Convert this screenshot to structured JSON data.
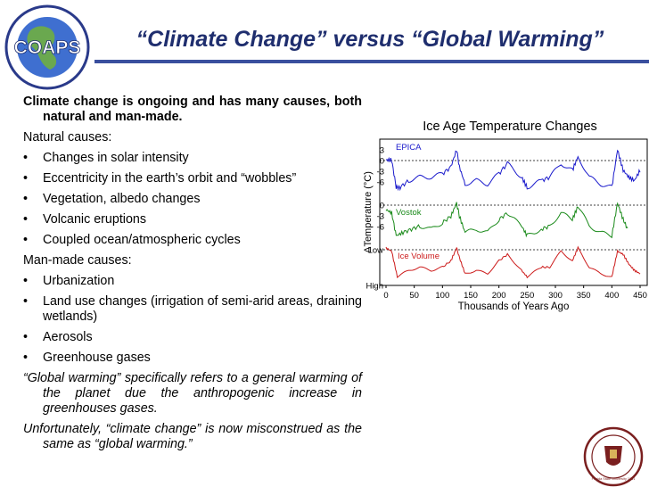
{
  "header": {
    "title": "“Climate Change” versus “Global Warming”",
    "logo_text": "COAPS",
    "logo_ring_text": "Florida State University · Center for Ocean-Atmospheric Prediction Studies"
  },
  "body": {
    "intro": "Climate change is ongoing and has many causes, both natural and man-made.",
    "natural_header": "Natural causes:",
    "natural_items": [
      "Changes in solar intensity",
      "Eccentricity in the earth’s orbit and “wobbles”",
      "Vegetation, albedo changes",
      "Volcanic eruptions",
      "Coupled ocean/atmospheric cycles"
    ],
    "manmade_header": "Man-made causes:",
    "manmade_items": [
      "Urbanization",
      "Land use changes (irrigation of semi-arid areas, draining wetlands)",
      "Aerosols",
      "Greenhouse gases"
    ],
    "gw_note": "“Global warming” specifically refers to a general warming of the planet due the anthropogenic increase in greenhouses gases.",
    "misconception": "Unfortunately, “climate change” is now misconstrued as the same as “global warming.”"
  },
  "bullet_glyph": "•",
  "seal_text": "Florida State University 1851",
  "chart_data": {
    "type": "line",
    "title": "Ice Age Temperature Changes",
    "xlabel": "Thousands of Years Ago",
    "ylabel": "ΔTemperature (°C)",
    "x_ticks": [
      "0",
      "50",
      "100",
      "150",
      "200",
      "250",
      "300",
      "350",
      "400",
      "450"
    ],
    "xlim": [
      0,
      450
    ],
    "series": [
      {
        "name": "EPICA",
        "color": "#1a1acc",
        "y_ticks": [
          "3",
          "0",
          "-3",
          "-6"
        ],
        "x": [
          0,
          10,
          18,
          25,
          40,
          60,
          80,
          100,
          115,
          125,
          130,
          140,
          160,
          180,
          200,
          215,
          240,
          250,
          275,
          290,
          310,
          330,
          340,
          360,
          380,
          400,
          410,
          420,
          430,
          440,
          450
        ],
        "y": [
          0,
          0,
          -8,
          -8,
          -6,
          -5,
          -5,
          -4,
          -2,
          3,
          -2,
          -7,
          -6,
          -7,
          -4,
          -1,
          -5,
          -8,
          -6,
          -5,
          -1,
          -3,
          1,
          -5,
          -7,
          -8,
          3,
          -3,
          -5,
          -6,
          -3
        ]
      },
      {
        "name": "Vostok",
        "color": "#1a8a1a",
        "y_ticks": [
          "0",
          "-3",
          "-6"
        ],
        "x": [
          0,
          10,
          18,
          30,
          45,
          60,
          80,
          100,
          115,
          125,
          130,
          140,
          160,
          180,
          200,
          215,
          240,
          250,
          275,
          290,
          310,
          330,
          340,
          360,
          380,
          400,
          410,
          420,
          428
        ],
        "y": [
          0,
          -1,
          -8,
          -7,
          -6,
          -5,
          -6,
          -4,
          -2,
          2,
          -2,
          -7,
          -6,
          -7,
          -3,
          -1,
          -5,
          -8,
          -6,
          -5,
          -1,
          -3,
          1,
          -5,
          -7,
          -8,
          2,
          -3,
          -6
        ]
      },
      {
        "name": "Ice Volume",
        "color": "#cc1a1a",
        "y_ticks": [
          "Low",
          "High"
        ],
        "x": [
          0,
          10,
          20,
          40,
          60,
          80,
          100,
          115,
          125,
          130,
          140,
          160,
          180,
          200,
          215,
          240,
          250,
          275,
          290,
          310,
          330,
          340,
          360,
          380,
          400,
          410,
          420,
          430,
          440,
          450
        ],
        "y": [
          1,
          0.9,
          0.1,
          0.3,
          0.4,
          0.3,
          0.4,
          0.6,
          1,
          0.7,
          0.2,
          0.3,
          0.2,
          0.6,
          0.8,
          0.3,
          0.1,
          0.4,
          0.4,
          0.9,
          0.6,
          1,
          0.4,
          0.2,
          0.1,
          0.9,
          0.8,
          0.5,
          0.3,
          0.2
        ]
      }
    ]
  }
}
